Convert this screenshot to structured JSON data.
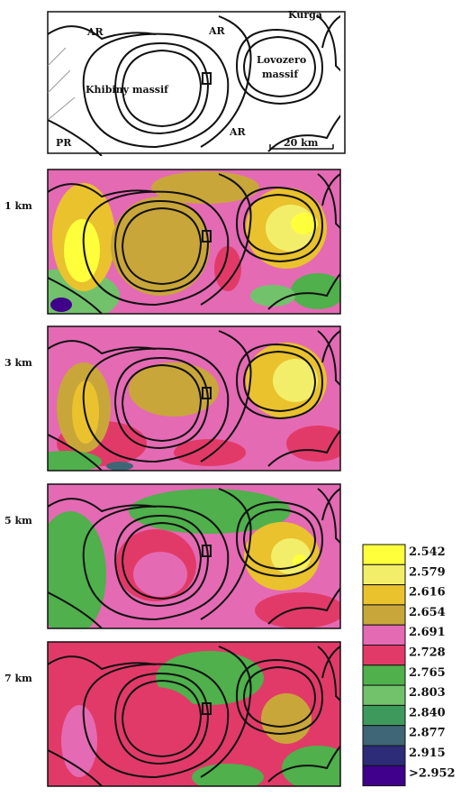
{
  "schematic": {
    "labels": [
      {
        "text": "AR"
      },
      {
        "text": "AR"
      },
      {
        "text": "Kurga"
      },
      {
        "text": "Lovozero"
      },
      {
        "text": "massif"
      },
      {
        "text": "Khibiny massif"
      },
      {
        "text": "AR"
      },
      {
        "text": "PR"
      },
      {
        "text": "20 km"
      }
    ]
  },
  "panels": [
    {
      "label": "1 km"
    },
    {
      "label": "3 km"
    },
    {
      "label": "5 km"
    },
    {
      "label": "7 km"
    }
  ],
  "legend": {
    "items": [
      {
        "label": "2.542",
        "color": "#ffff3c"
      },
      {
        "label": "2.579",
        "color": "#f3ee6a"
      },
      {
        "label": "2.616",
        "color": "#e9c22e"
      },
      {
        "label": "2.654",
        "color": "#c9a63a"
      },
      {
        "label": "2.691",
        "color": "#e46ab4"
      },
      {
        "label": "2.728",
        "color": "#e23a68"
      },
      {
        "label": "2.765",
        "color": "#4fb04c"
      },
      {
        "label": "2.803",
        "color": "#72c26c"
      },
      {
        "label": "2.840",
        "color": "#3e9a5c"
      },
      {
        "label": "2.877",
        "color": "#3e6676"
      },
      {
        "label": "2.915",
        "color": "#2c2c78"
      },
      {
        "label": ">2.952",
        "color": "#40008c"
      }
    ]
  }
}
